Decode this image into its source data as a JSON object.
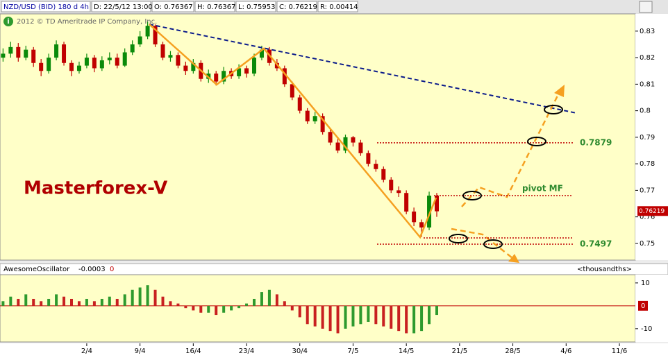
{
  "header": {
    "symbol": "NZD/USD (BID) 180 d 4h",
    "date": "D: 22/5/12 13:00",
    "open": "O: 0.76367",
    "high": "H: 0.76367",
    "low": "L: 0.75953",
    "close": "C: 0.76219",
    "range": "R: 0.00414"
  },
  "chart_data": [
    {
      "type": "candlestick",
      "copyright": "2012 © TD Ameritrade IP Company, Inc.",
      "watermark": "Masterforex-V",
      "annotation": "pivot MF",
      "up_color": "#0a8a0a",
      "down_color": "#c00000",
      "x": [
        -10,
        -9,
        -8,
        -7,
        -6,
        -5,
        -4,
        -3,
        -2,
        -1,
        0,
        1,
        2,
        3,
        4,
        5,
        6,
        7,
        8,
        9,
        10,
        11,
        12,
        13,
        14,
        15,
        16,
        17,
        18,
        19,
        20,
        21,
        22,
        23,
        24,
        25,
        26,
        27,
        28,
        29,
        30,
        31,
        32,
        33,
        34,
        35,
        36,
        37,
        38,
        39,
        40,
        41,
        42,
        43,
        44,
        45,
        46,
        47
      ],
      "open": [
        0.82,
        0.8215,
        0.824,
        0.82,
        0.823,
        0.818,
        0.815,
        0.82,
        0.825,
        0.818,
        0.815,
        0.817,
        0.82,
        0.816,
        0.819,
        0.82,
        0.817,
        0.822,
        0.825,
        0.828,
        0.832,
        0.825,
        0.82,
        0.821,
        0.817,
        0.815,
        0.818,
        0.812,
        0.814,
        0.811,
        0.815,
        0.813,
        0.816,
        0.814,
        0.82,
        0.823,
        0.818,
        0.816,
        0.81,
        0.805,
        0.8,
        0.796,
        0.798,
        0.792,
        0.788,
        0.785,
        0.79,
        0.788,
        0.784,
        0.78,
        0.778,
        0.774,
        0.77,
        0.769,
        0.762,
        0.758,
        0.756,
        0.768
      ],
      "high": [
        0.8235,
        0.826,
        0.8255,
        0.8245,
        0.824,
        0.8195,
        0.8215,
        0.8265,
        0.826,
        0.819,
        0.8185,
        0.8215,
        0.821,
        0.8205,
        0.822,
        0.8215,
        0.8235,
        0.8265,
        0.83,
        0.8335,
        0.8325,
        0.826,
        0.8225,
        0.822,
        0.8185,
        0.8195,
        0.819,
        0.8155,
        0.815,
        0.8165,
        0.816,
        0.8175,
        0.817,
        0.8215,
        0.8245,
        0.824,
        0.8195,
        0.817,
        0.811,
        0.806,
        0.801,
        0.7995,
        0.799,
        0.793,
        0.7895,
        0.791,
        0.7905,
        0.789,
        0.785,
        0.7815,
        0.779,
        0.775,
        0.7715,
        0.77,
        0.7635,
        0.759,
        0.7695,
        0.769
      ],
      "low": [
        0.8185,
        0.82,
        0.8185,
        0.819,
        0.8165,
        0.813,
        0.814,
        0.819,
        0.817,
        0.813,
        0.814,
        0.816,
        0.8145,
        0.815,
        0.8175,
        0.816,
        0.8165,
        0.821,
        0.824,
        0.827,
        0.824,
        0.819,
        0.8185,
        0.816,
        0.8135,
        0.814,
        0.811,
        0.8105,
        0.8095,
        0.81,
        0.812,
        0.812,
        0.8125,
        0.813,
        0.819,
        0.817,
        0.815,
        0.809,
        0.804,
        0.799,
        0.795,
        0.795,
        0.791,
        0.787,
        0.784,
        0.784,
        0.7865,
        0.783,
        0.779,
        0.777,
        0.773,
        0.769,
        0.7675,
        0.761,
        0.7565,
        0.7525,
        0.755,
        0.76
      ],
      "close": [
        0.8215,
        0.824,
        0.82,
        0.823,
        0.818,
        0.815,
        0.82,
        0.825,
        0.818,
        0.815,
        0.817,
        0.82,
        0.816,
        0.819,
        0.82,
        0.817,
        0.822,
        0.825,
        0.828,
        0.832,
        0.825,
        0.82,
        0.821,
        0.817,
        0.815,
        0.818,
        0.812,
        0.814,
        0.811,
        0.815,
        0.813,
        0.816,
        0.814,
        0.82,
        0.823,
        0.818,
        0.816,
        0.81,
        0.805,
        0.8,
        0.796,
        0.798,
        0.792,
        0.788,
        0.785,
        0.79,
        0.788,
        0.784,
        0.78,
        0.778,
        0.774,
        0.77,
        0.769,
        0.762,
        0.758,
        0.756,
        0.768,
        0.7621
      ],
      "xlim": [
        -10.4,
        73.1
      ],
      "ylim": [
        0.7437,
        0.8365
      ],
      "yticks": [
        0.83,
        0.82,
        0.81,
        0.8,
        0.79,
        0.78,
        0.77,
        0.76,
        0.75
      ],
      "last_price": 0.76219,
      "levels": [
        {
          "value": 0.7879,
          "label": "0.7879"
        },
        {
          "value": 0.7497,
          "label": "0.7497"
        }
      ]
    },
    {
      "type": "bar",
      "title": "AwesomeOscillator",
      "readouts": [
        -0.0003,
        0
      ],
      "units": "<thousandths>",
      "up_color": "#2e9a2e",
      "down_color": "#c82020",
      "x": [
        -10,
        -9,
        -8,
        -7,
        -6,
        -5,
        -4,
        -3,
        -2,
        -1,
        0,
        1,
        2,
        3,
        4,
        5,
        6,
        7,
        8,
        9,
        10,
        11,
        12,
        13,
        14,
        15,
        16,
        17,
        18,
        19,
        20,
        21,
        22,
        23,
        24,
        25,
        26,
        27,
        28,
        29,
        30,
        31,
        32,
        33,
        34,
        35,
        36,
        37,
        38,
        39,
        40,
        41,
        42,
        43,
        44,
        45,
        46,
        47
      ],
      "values": [
        2,
        4,
        3,
        5,
        3,
        2,
        3,
        5,
        4,
        3,
        2,
        3,
        2,
        3,
        4,
        3,
        5,
        7,
        8,
        9,
        7,
        4,
        2,
        1,
        -1,
        -2,
        -3,
        -3,
        -4,
        -3,
        -2,
        -1,
        1,
        3,
        6,
        7,
        5,
        2,
        -2,
        -5,
        -8,
        -9,
        -10,
        -11,
        -12,
        -10,
        -9,
        -8,
        -7,
        -8,
        -9,
        -10,
        -11,
        -12,
        -12,
        -11,
        -8,
        -4
      ],
      "xlim": [
        -10.4,
        73.1
      ],
      "ylim": [
        -15.8,
        13.6
      ],
      "yticks": [
        10,
        -10
      ],
      "zero_line": 0,
      "xticks": [
        {
          "value": 1,
          "label": "2/4"
        },
        {
          "value": 8,
          "label": "9/4"
        },
        {
          "value": 15,
          "label": "16/4"
        },
        {
          "value": 22,
          "label": "23/4"
        },
        {
          "value": 29,
          "label": "30/4"
        },
        {
          "value": 36,
          "label": "7/5"
        },
        {
          "value": 43,
          "label": "14/5"
        },
        {
          "value": 50,
          "label": "21/5"
        },
        {
          "value": 57,
          "label": "28/5"
        },
        {
          "value": 64,
          "label": "4/6"
        },
        {
          "value": 71,
          "label": "11/6"
        }
      ]
    }
  ]
}
